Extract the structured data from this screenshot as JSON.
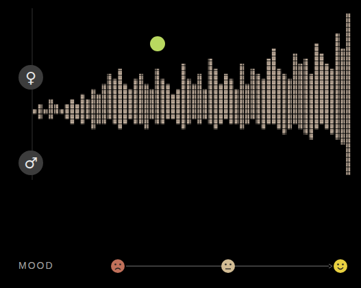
{
  "chart_data": [
    {
      "type": "bar",
      "label": "♀",
      "categories": [
        null,
        null,
        null,
        null,
        null,
        null,
        null,
        null,
        null,
        null,
        null,
        null,
        null,
        null,
        null,
        null,
        null,
        null,
        null,
        null,
        null,
        null,
        null,
        null,
        null,
        null,
        null,
        null,
        null,
        null,
        null,
        null,
        null,
        null,
        null,
        null,
        null,
        null,
        null,
        null,
        null,
        null,
        null,
        null,
        null,
        null,
        null,
        null,
        null,
        null,
        null,
        null,
        null,
        null,
        null,
        null,
        null,
        null,
        null,
        null
      ],
      "values": [
        1,
        2,
        1,
        3,
        2,
        1,
        2,
        3,
        2,
        4,
        3,
        5,
        4,
        6,
        8,
        7,
        9,
        6,
        5,
        7,
        8,
        6,
        5,
        9,
        7,
        6,
        4,
        5,
        10,
        7,
        6,
        8,
        5,
        11,
        9,
        6,
        8,
        7,
        5,
        10,
        6,
        9,
        8,
        7,
        11,
        13,
        9,
        8,
        7,
        12,
        10,
        11,
        8,
        14,
        12,
        10,
        9,
        16,
        13,
        20
      ],
      "color": "#c4b2a0",
      "ylim": [
        0,
        21
      ],
      "yticks": [],
      "tick_labels": false
    },
    {
      "type": "bar",
      "label": "♂",
      "x_label": "MOOD",
      "categories": [
        null,
        null,
        null,
        null,
        null,
        null,
        null,
        null,
        null,
        null,
        null,
        null,
        null,
        null,
        null,
        null,
        null,
        null,
        null,
        null,
        null,
        null,
        null,
        null,
        null,
        null,
        null,
        null,
        null,
        null,
        null,
        null,
        null,
        null,
        null,
        null,
        null,
        null,
        null,
        null,
        null,
        null,
        null,
        null,
        null,
        null,
        null,
        null,
        null,
        null,
        null,
        null,
        null,
        null,
        null,
        null,
        null,
        null,
        null,
        null
      ],
      "values": [
        0,
        1,
        0,
        1,
        0,
        0,
        1,
        2,
        1,
        2,
        1,
        3,
        2,
        2,
        1,
        2,
        3,
        2,
        1,
        2,
        2,
        3,
        1,
        2,
        2,
        1,
        1,
        2,
        3,
        2,
        1,
        2,
        1,
        2,
        3,
        2,
        1,
        2,
        2,
        3,
        2,
        1,
        2,
        3,
        2,
        2,
        3,
        4,
        3,
        2,
        3,
        4,
        5,
        3,
        2,
        3,
        4,
        5,
        6,
        12
      ],
      "color": "#c4b2a0",
      "ylim": [
        0,
        13
      ],
      "yticks": [],
      "tick_labels": false
    }
  ]
}
